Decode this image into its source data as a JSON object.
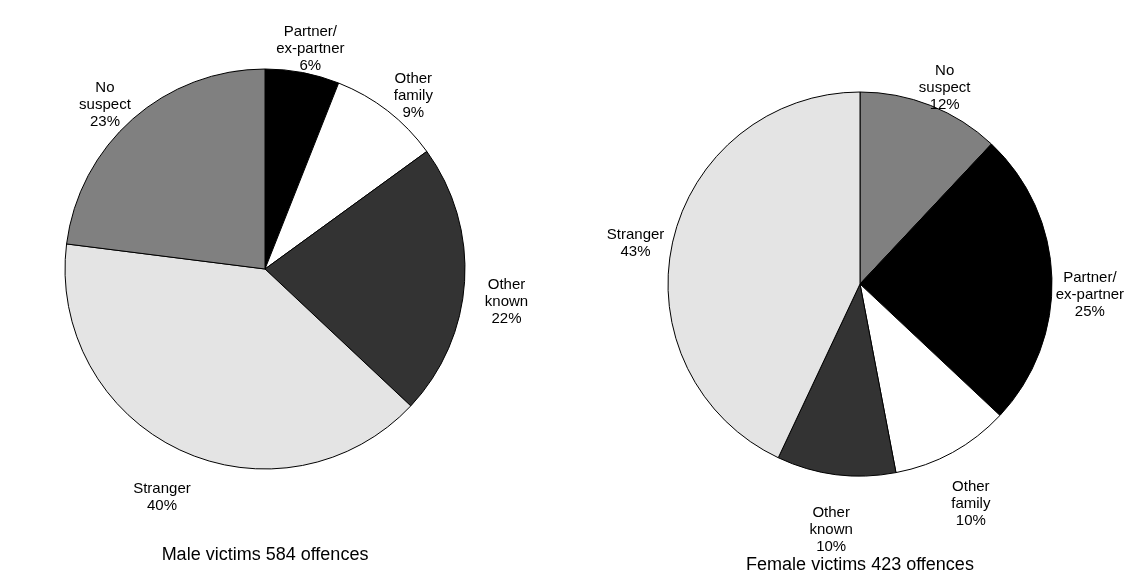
{
  "chart_data": [
    {
      "type": "pie",
      "title": "Male victims 584 offences",
      "categories": [
        "Partner/ex-partner",
        "Other family",
        "Other known",
        "Stranger",
        "No suspect"
      ],
      "values": [
        6,
        9,
        22,
        40,
        23
      ],
      "value_labels": [
        "6%",
        "9%",
        "22%",
        "40%",
        "23%"
      ],
      "colors": [
        "#000000",
        "#ffffff",
        "#333333",
        "#e4e4e4",
        "#808080"
      ]
    },
    {
      "type": "pie",
      "title": "Female victims 423 offences",
      "categories": [
        "No suspect",
        "Partner/ex-partner",
        "Other family",
        "Other known",
        "Stranger"
      ],
      "values": [
        12,
        25,
        10,
        10,
        43
      ],
      "value_labels": [
        "12%",
        "25%",
        "10%",
        "10%",
        "43%"
      ],
      "colors": [
        "#808080",
        "#000000",
        "#ffffff",
        "#333333",
        "#e4e4e4"
      ]
    }
  ]
}
